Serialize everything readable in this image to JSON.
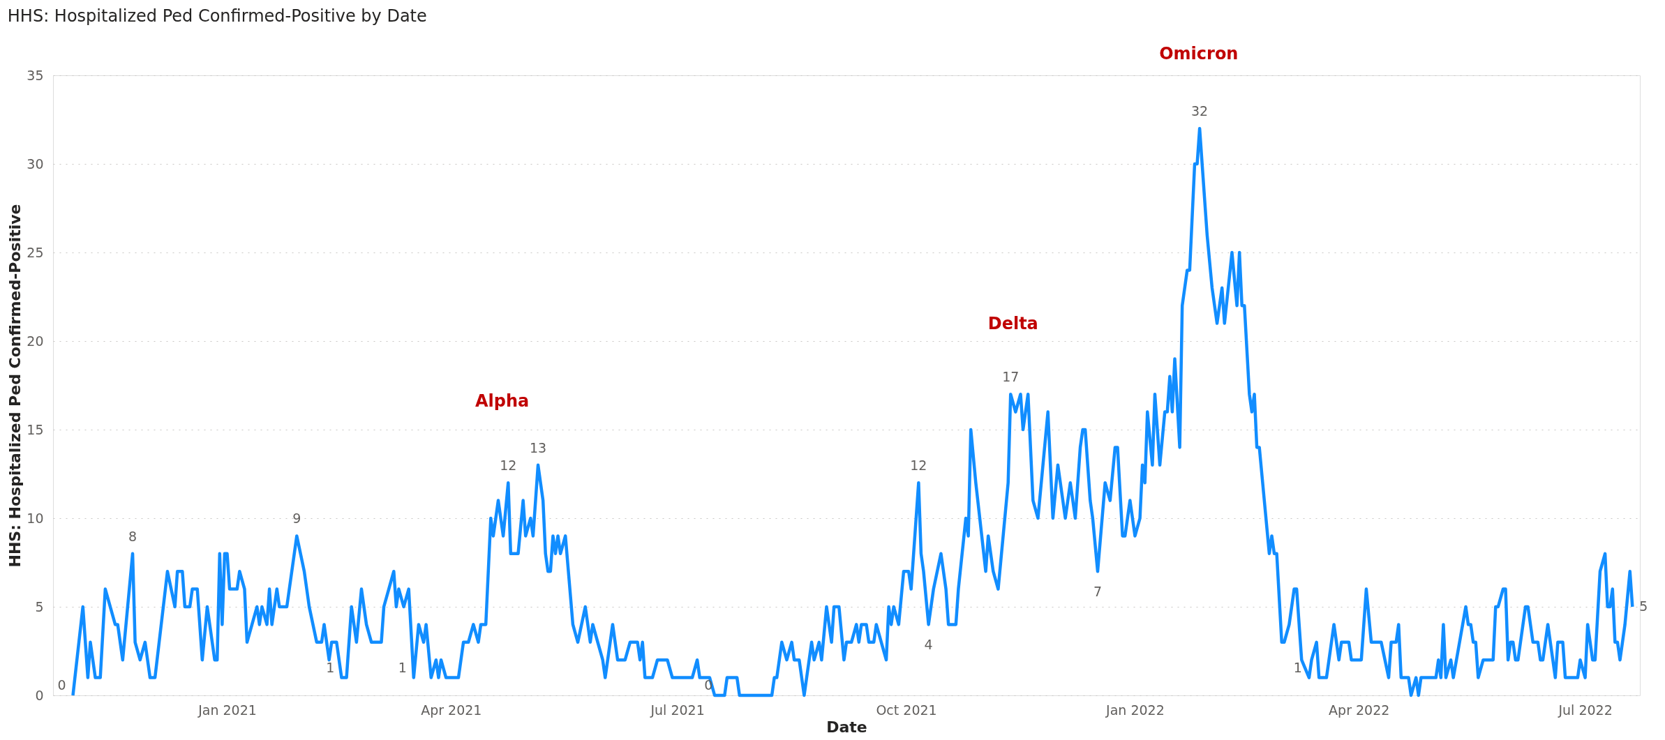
{
  "chart_data": {
    "type": "line",
    "title": "HHS: Hospitalized Ped Confirmed-Positive by Date",
    "xlabel": "Date",
    "ylabel": "HHS: Hospitalized Ped Confirmed-Positive",
    "xlim": [
      "2020-10-23",
      "2022-07-23"
    ],
    "xticks": [
      {
        "value": "2021-01-01",
        "label": "Jan 2021"
      },
      {
        "value": "2021-04-01",
        "label": "Apr 2021"
      },
      {
        "value": "2021-07-01",
        "label": "Jul 2021"
      },
      {
        "value": "2021-10-01",
        "label": "Oct 2021"
      },
      {
        "value": "2022-01-01",
        "label": "Jan 2022"
      },
      {
        "value": "2022-04-01",
        "label": "Apr 2022"
      },
      {
        "value": "2022-07-01",
        "label": "Jul 2022"
      }
    ],
    "ylim": [
      0,
      35
    ],
    "yticks": [
      0,
      5,
      10,
      15,
      20,
      25,
      30,
      35
    ],
    "grid": "y",
    "annotations": [
      "Alpha",
      "Delta",
      "Omicron"
    ],
    "series": [
      {
        "color": "#118dff",
        "x": [
          "2020-10-31",
          "2020-11-04",
          "2020-11-06",
          "2020-11-07",
          "2020-11-09",
          "2020-11-11",
          "2020-11-13",
          "2020-11-17",
          "2020-11-18",
          "2020-11-20",
          "2020-11-22",
          "2020-11-24",
          "2020-11-25",
          "2020-11-27",
          "2020-11-29",
          "2020-12-01",
          "2020-12-03",
          "2020-12-08",
          "2020-12-11",
          "2020-12-12",
          "2020-12-14",
          "2020-12-15",
          "2020-12-17",
          "2020-12-18",
          "2020-12-20",
          "2020-12-22",
          "2020-12-24",
          "2020-12-27",
          "2020-12-28",
          "2020-12-29",
          "2020-12-30",
          "2020-12-31",
          "2021-01-01",
          "2021-01-02",
          "2021-01-05",
          "2021-01-06",
          "2021-01-08",
          "2021-01-09",
          "2021-01-11",
          "2021-01-13",
          "2021-01-14",
          "2021-01-15",
          "2021-01-17",
          "2021-01-18",
          "2021-01-19",
          "2021-01-21",
          "2021-01-22",
          "2021-01-25",
          "2021-01-29",
          "2021-02-01",
          "2021-02-03",
          "2021-02-06",
          "2021-02-08",
          "2021-02-09",
          "2021-02-11",
          "2021-02-12",
          "2021-02-14",
          "2021-02-16",
          "2021-02-18",
          "2021-02-20",
          "2021-02-22",
          "2021-02-24",
          "2021-02-26",
          "2021-02-28",
          "2021-03-04",
          "2021-03-05",
          "2021-03-07",
          "2021-03-09",
          "2021-03-10",
          "2021-03-11",
          "2021-03-13",
          "2021-03-15",
          "2021-03-17",
          "2021-03-19",
          "2021-03-21",
          "2021-03-22",
          "2021-03-24",
          "2021-03-26",
          "2021-03-27",
          "2021-03-28",
          "2021-03-30",
          "2021-04-04",
          "2021-04-06",
          "2021-04-08",
          "2021-04-10",
          "2021-04-12",
          "2021-04-13",
          "2021-04-15",
          "2021-04-17",
          "2021-04-18",
          "2021-04-20",
          "2021-04-22",
          "2021-04-24",
          "2021-04-25",
          "2021-04-28",
          "2021-04-30",
          "2021-05-01",
          "2021-05-03",
          "2021-05-04",
          "2021-05-06",
          "2021-05-08",
          "2021-05-09",
          "2021-05-10",
          "2021-05-11",
          "2021-05-12",
          "2021-05-13",
          "2021-05-14",
          "2021-05-15",
          "2021-05-17",
          "2021-05-20",
          "2021-05-22",
          "2021-05-25",
          "2021-05-27",
          "2021-05-28",
          "2021-05-30",
          "2021-06-01",
          "2021-06-02",
          "2021-06-05",
          "2021-06-07",
          "2021-06-10",
          "2021-06-12",
          "2021-06-15",
          "2021-06-16",
          "2021-06-17",
          "2021-06-18",
          "2021-06-21",
          "2021-06-23",
          "2021-06-27",
          "2021-06-29",
          "2021-07-07",
          "2021-07-09",
          "2021-07-10",
          "2021-07-14",
          "2021-07-16",
          "2021-07-18",
          "2021-07-20",
          "2021-07-21",
          "2021-07-25",
          "2021-07-26",
          "2021-08-08",
          "2021-08-09",
          "2021-08-10",
          "2021-08-12",
          "2021-08-14",
          "2021-08-16",
          "2021-08-17",
          "2021-08-19",
          "2021-08-21",
          "2021-08-24",
          "2021-08-25",
          "2021-08-27",
          "2021-08-28",
          "2021-08-30",
          "2021-09-01",
          "2021-09-02",
          "2021-09-04",
          "2021-09-06",
          "2021-09-07",
          "2021-09-09",
          "2021-09-11",
          "2021-09-12",
          "2021-09-13",
          "2021-09-15",
          "2021-09-16",
          "2021-09-18",
          "2021-09-19",
          "2021-09-21",
          "2021-09-23",
          "2021-09-24",
          "2021-09-25",
          "2021-09-26",
          "2021-09-28",
          "2021-09-30",
          "2021-10-02",
          "2021-10-03",
          "2021-10-06",
          "2021-10-07",
          "2021-10-08",
          "2021-10-10",
          "2021-10-12",
          "2021-10-15",
          "2021-10-17",
          "2021-10-18",
          "2021-10-21",
          "2021-10-22",
          "2021-10-25",
          "2021-10-26",
          "2021-10-27",
          "2021-10-29",
          "2021-11-02",
          "2021-11-03",
          "2021-11-05",
          "2021-11-07",
          "2021-11-11",
          "2021-11-12",
          "2021-11-14",
          "2021-11-16",
          "2021-11-17",
          "2021-11-19",
          "2021-11-21",
          "2021-11-23",
          "2021-11-25",
          "2021-11-27",
          "2021-11-29",
          "2021-12-01",
          "2021-12-04",
          "2021-12-06",
          "2021-12-08",
          "2021-12-10",
          "2021-12-11",
          "2021-12-12",
          "2021-12-14",
          "2021-12-15",
          "2021-12-17",
          "2021-12-20",
          "2021-12-22",
          "2021-12-24",
          "2021-12-25",
          "2021-12-27",
          "2021-12-28",
          "2021-12-30",
          "2022-01-01",
          "2022-01-03",
          "2022-01-04",
          "2022-01-05",
          "2022-01-06",
          "2022-01-08",
          "2022-01-09",
          "2022-01-11",
          "2022-01-13",
          "2022-01-14",
          "2022-01-15",
          "2022-01-16",
          "2022-01-17",
          "2022-01-19",
          "2022-01-20",
          "2022-01-22",
          "2022-01-23",
          "2022-01-24",
          "2022-01-25",
          "2022-01-26",
          "2022-01-27",
          "2022-01-29",
          "2022-01-30",
          "2022-02-01",
          "2022-02-03",
          "2022-02-05",
          "2022-02-06",
          "2022-02-09",
          "2022-02-11",
          "2022-02-12",
          "2022-02-13",
          "2022-02-14",
          "2022-02-16",
          "2022-02-17",
          "2022-02-18",
          "2022-02-19",
          "2022-02-20",
          "2022-02-22",
          "2022-02-24",
          "2022-02-25",
          "2022-02-26",
          "2022-02-27",
          "2022-03-01",
          "2022-03-02",
          "2022-03-04",
          "2022-03-06",
          "2022-03-07",
          "2022-03-09",
          "2022-03-12",
          "2022-03-13",
          "2022-03-15",
          "2022-03-16",
          "2022-03-19",
          "2022-03-21",
          "2022-03-22",
          "2022-03-24",
          "2022-03-25",
          "2022-03-28",
          "2022-03-29",
          "2022-04-02",
          "2022-04-04",
          "2022-04-06",
          "2022-04-08",
          "2022-04-10",
          "2022-04-13",
          "2022-04-14",
          "2022-04-16",
          "2022-04-17",
          "2022-04-18",
          "2022-04-21",
          "2022-04-22",
          "2022-04-24",
          "2022-04-25",
          "2022-04-26",
          "2022-05-02",
          "2022-05-03",
          "2022-05-04",
          "2022-05-05",
          "2022-05-06",
          "2022-05-08",
          "2022-05-09",
          "2022-05-14",
          "2022-05-15",
          "2022-05-16",
          "2022-05-17",
          "2022-05-18",
          "2022-05-19",
          "2022-05-21",
          "2022-05-25",
          "2022-05-26",
          "2022-05-27",
          "2022-05-29",
          "2022-05-30",
          "2022-05-31",
          "2022-06-01",
          "2022-06-02",
          "2022-06-03",
          "2022-06-04",
          "2022-06-07",
          "2022-06-08",
          "2022-06-10",
          "2022-06-12",
          "2022-06-13",
          "2022-06-14",
          "2022-06-16",
          "2022-06-17",
          "2022-06-19",
          "2022-06-20",
          "2022-06-22",
          "2022-06-23",
          "2022-06-28",
          "2022-06-29",
          "2022-07-01",
          "2022-07-02",
          "2022-07-04",
          "2022-07-05",
          "2022-07-07",
          "2022-07-09",
          "2022-07-10",
          "2022-07-11",
          "2022-07-12",
          "2022-07-13",
          "2022-07-14",
          "2022-07-15",
          "2022-07-17",
          "2022-07-19",
          "2022-07-20"
        ],
        "values": [
          0,
          5,
          1,
          3,
          1,
          1,
          6,
          4,
          4,
          2,
          5,
          8,
          3,
          2,
          3,
          1,
          1,
          7,
          5,
          7,
          7,
          5,
          5,
          6,
          6,
          2,
          5,
          2,
          2,
          8,
          4,
          8,
          8,
          6,
          6,
          7,
          6,
          3,
          4,
          5,
          4,
          5,
          4,
          6,
          4,
          6,
          5,
          5,
          9,
          7,
          5,
          3,
          3,
          4,
          2,
          3,
          3,
          1,
          1,
          5,
          3,
          6,
          4,
          3,
          3,
          5,
          6,
          7,
          5,
          6,
          5,
          6,
          1,
          4,
          3,
          4,
          1,
          2,
          1,
          2,
          1,
          1,
          3,
          3,
          4,
          3,
          4,
          4,
          10,
          9,
          11,
          9,
          12,
          8,
          8,
          11,
          9,
          10,
          9,
          13,
          11,
          8,
          7,
          7,
          9,
          8,
          9,
          8,
          9,
          4,
          3,
          5,
          3,
          4,
          3,
          2,
          1,
          4,
          2,
          2,
          3,
          3,
          2,
          3,
          1,
          1,
          2,
          2,
          1,
          1,
          2,
          1,
          1,
          0,
          0,
          0,
          1,
          1,
          0,
          0,
          1,
          1,
          3,
          2,
          3,
          2,
          2,
          0,
          3,
          2,
          3,
          2,
          5,
          3,
          5,
          5,
          2,
          3,
          3,
          4,
          3,
          4,
          4,
          3,
          3,
          4,
          3,
          2,
          5,
          4,
          5,
          4,
          7,
          7,
          6,
          12,
          8,
          7,
          4,
          6,
          8,
          6,
          4,
          4,
          6,
          10,
          9,
          15,
          12,
          7,
          9,
          7,
          6,
          12,
          17,
          16,
          17,
          15,
          17,
          11,
          10,
          13,
          16,
          10,
          13,
          10,
          12,
          10,
          14,
          15,
          15,
          11,
          10,
          7,
          12,
          11,
          14,
          14,
          9,
          9,
          11,
          9,
          10,
          13,
          12,
          16,
          13,
          17,
          13,
          16,
          16,
          18,
          16,
          19,
          14,
          22,
          24,
          24,
          27,
          30,
          30,
          32,
          28,
          26,
          23,
          21,
          23,
          21,
          25,
          22,
          25,
          22,
          22,
          17,
          16,
          17,
          14,
          14,
          11,
          8,
          9,
          8,
          8,
          3,
          3,
          4,
          6,
          6,
          2,
          1,
          2,
          3,
          1,
          1,
          3,
          4,
          2,
          3,
          3,
          2,
          2,
          6,
          3,
          3,
          3,
          1,
          3,
          3,
          4,
          1,
          1,
          0,
          1,
          0,
          1,
          1,
          2,
          1,
          4,
          1,
          2,
          1,
          5,
          4,
          4,
          3,
          3,
          1,
          2,
          2,
          5,
          5,
          6,
          6,
          2,
          3,
          3,
          2,
          2,
          5,
          5,
          3,
          3,
          2,
          2,
          4,
          3,
          1,
          3,
          3,
          1,
          1,
          2,
          1,
          4,
          2,
          2,
          7,
          8,
          5,
          5,
          6,
          3,
          3,
          2,
          4,
          7,
          5
        ],
        "value_labels": [
          "0",
          null,
          null,
          null,
          null,
          null,
          null,
          null,
          null,
          null,
          null,
          "8",
          null,
          null,
          null,
          null,
          null,
          null,
          null,
          null,
          null,
          null,
          null,
          null,
          null,
          null,
          null,
          null,
          null,
          null,
          null,
          null,
          null,
          null,
          null,
          null,
          null,
          null,
          null,
          null,
          null,
          null,
          null,
          null,
          null,
          null,
          null,
          null,
          "9",
          null,
          null,
          null,
          null,
          null,
          null,
          null,
          null,
          "1",
          null,
          null,
          null,
          null,
          null,
          null,
          null,
          null,
          null,
          null,
          null,
          null,
          null,
          null,
          "1",
          null,
          null,
          null,
          null,
          null,
          null,
          null,
          null,
          null,
          null,
          null,
          null,
          null,
          null,
          null,
          null,
          null,
          null,
          null,
          "12",
          null,
          null,
          null,
          null,
          null,
          null,
          "13",
          null,
          null,
          null,
          null,
          null,
          null,
          null,
          null,
          null,
          null,
          null,
          null,
          null,
          null,
          null,
          null,
          null,
          null,
          null,
          null,
          null,
          null,
          null,
          null,
          null,
          null,
          null,
          null,
          null,
          null,
          null,
          null,
          null,
          null,
          "0",
          null,
          null,
          null,
          null,
          null,
          null,
          null,
          null,
          null,
          null,
          null,
          null,
          null,
          null,
          null,
          null,
          null,
          null,
          null,
          null,
          null,
          null,
          null,
          null,
          null,
          null,
          null,
          null,
          null,
          null,
          null,
          null,
          null,
          null,
          null,
          null,
          null,
          null,
          null,
          null,
          "12",
          null,
          null,
          "4",
          null,
          null,
          null,
          null,
          null,
          null,
          null,
          null,
          null,
          null,
          null,
          null,
          null,
          null,
          null,
          "17",
          null,
          null,
          null,
          null,
          null,
          null,
          null,
          null,
          null,
          null,
          null,
          null,
          null,
          null,
          null,
          null,
          null,
          null,
          "7",
          null,
          null,
          null,
          null,
          null,
          null,
          null,
          null,
          null,
          null,
          null,
          null,
          null,
          null,
          null,
          null,
          null,
          null,
          null,
          null,
          null,
          null,
          null,
          null,
          null,
          null,
          null,
          "32",
          null,
          null,
          null,
          null,
          null,
          null,
          null,
          null,
          null,
          null,
          null,
          null,
          null,
          null,
          null,
          null,
          null,
          null,
          null,
          null,
          null,
          null,
          null,
          null,
          null,
          null,
          null,
          "1",
          null,
          null,
          null,
          null,
          null,
          null,
          null,
          null,
          null,
          null,
          null,
          null,
          null,
          null,
          null,
          null,
          null,
          null,
          null,
          null,
          null,
          null,
          null,
          null,
          null,
          null,
          null,
          null,
          null,
          null,
          null,
          null,
          null,
          null,
          null,
          null,
          null,
          null,
          null,
          null,
          null,
          null,
          null,
          null,
          null,
          null,
          null,
          null,
          null,
          null,
          null,
          null,
          null,
          null,
          null,
          null,
          null,
          null,
          null,
          null,
          null,
          null,
          null,
          null,
          null,
          null,
          null,
          null,
          null,
          null,
          null,
          null,
          null,
          null,
          null,
          null,
          null,
          "5"
        ]
      }
    ]
  }
}
